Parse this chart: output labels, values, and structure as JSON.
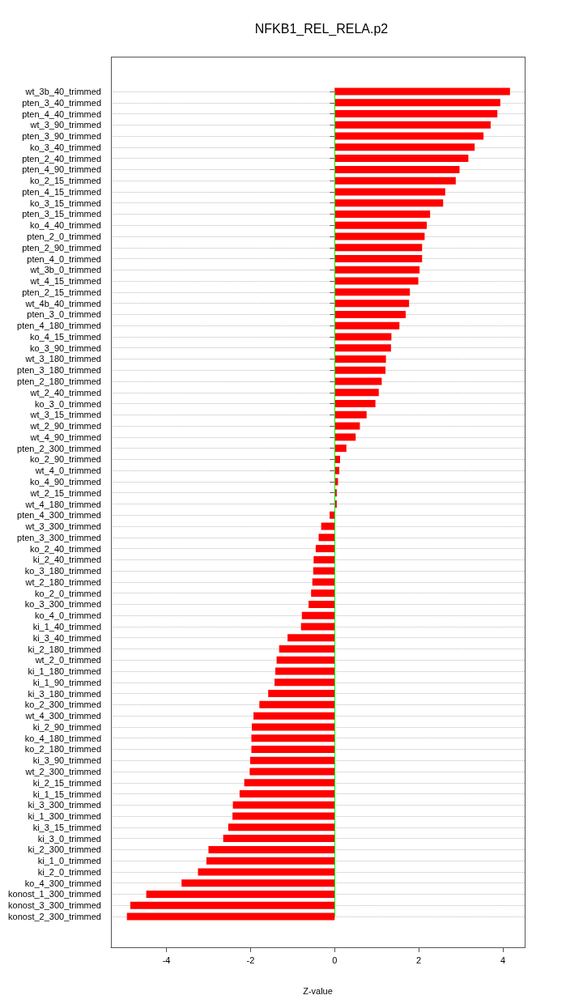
{
  "chart_data": {
    "type": "bar",
    "orientation": "horizontal",
    "title": "NFKB1_REL_RELA.p2",
    "xlabel": "Z-value",
    "categories": [
      "wt_3b_40_trimmed",
      "pten_3_40_trimmed",
      "pten_4_40_trimmed",
      "wt_3_90_trimmed",
      "pten_3_90_trimmed",
      "ko_3_40_trimmed",
      "pten_2_40_trimmed",
      "pten_4_90_trimmed",
      "ko_2_15_trimmed",
      "pten_4_15_trimmed",
      "ko_3_15_trimmed",
      "pten_3_15_trimmed",
      "ko_4_40_trimmed",
      "pten_2_0_trimmed",
      "pten_2_90_trimmed",
      "pten_4_0_trimmed",
      "wt_3b_0_trimmed",
      "wt_4_15_trimmed",
      "pten_2_15_trimmed",
      "wt_4b_40_trimmed",
      "pten_3_0_trimmed",
      "pten_4_180_trimmed",
      "ko_4_15_trimmed",
      "ko_3_90_trimmed",
      "wt_3_180_trimmed",
      "pten_3_180_trimmed",
      "pten_2_180_trimmed",
      "wt_2_40_trimmed",
      "ko_3_0_trimmed",
      "wt_3_15_trimmed",
      "wt_2_90_trimmed",
      "wt_4_90_trimmed",
      "pten_2_300_trimmed",
      "ko_2_90_trimmed",
      "wt_4_0_trimmed",
      "ko_4_90_trimmed",
      "wt_2_15_trimmed",
      "wt_4_180_trimmed",
      "pten_4_300_trimmed",
      "wt_3_300_trimmed",
      "pten_3_300_trimmed",
      "ko_2_40_trimmed",
      "ki_2_40_trimmed",
      "ko_3_180_trimmed",
      "wt_2_180_trimmed",
      "ko_2_0_trimmed",
      "ko_3_300_trimmed",
      "ko_4_0_trimmed",
      "ki_1_40_trimmed",
      "ki_3_40_trimmed",
      "ki_2_180_trimmed",
      "wt_2_0_trimmed",
      "ki_1_180_trimmed",
      "ki_1_90_trimmed",
      "ki_3_180_trimmed",
      "ko_2_300_trimmed",
      "wt_4_300_trimmed",
      "ki_2_90_trimmed",
      "ko_4_180_trimmed",
      "ko_2_180_trimmed",
      "ki_3_90_trimmed",
      "wt_2_300_trimmed",
      "ki_2_15_trimmed",
      "ki_1_15_trimmed",
      "ki_3_300_trimmed",
      "ki_1_300_trimmed",
      "ki_3_15_trimmed",
      "ki_3_0_trimmed",
      "ki_2_300_trimmed",
      "ki_1_0_trimmed",
      "ki_2_0_trimmed",
      "ko_4_300_trimmed",
      "konost_1_300_trimmed",
      "konost_3_300_trimmed",
      "konost_2_300_trimmed"
    ],
    "values": [
      4.17,
      3.94,
      3.87,
      3.71,
      3.54,
      3.33,
      3.18,
      2.97,
      2.88,
      2.63,
      2.58,
      2.27,
      2.19,
      2.14,
      2.08,
      2.08,
      2.02,
      1.99,
      1.79,
      1.77,
      1.69,
      1.54,
      1.35,
      1.34,
      1.22,
      1.21,
      1.12,
      1.05,
      0.97,
      0.76,
      0.6,
      0.5,
      0.28,
      0.13,
      0.11,
      0.08,
      0.05,
      0.05,
      -0.12,
      -0.32,
      -0.38,
      -0.45,
      -0.5,
      -0.51,
      -0.53,
      -0.56,
      -0.62,
      -0.78,
      -0.8,
      -1.12,
      -1.32,
      -1.38,
      -1.41,
      -1.43,
      -1.58,
      -1.79,
      -1.93,
      -1.97,
      -1.98,
      -1.98,
      -2.01,
      -2.02,
      -2.15,
      -2.26,
      -2.42,
      -2.43,
      -2.53,
      -2.65,
      -3.0,
      -3.05,
      -3.25,
      -3.64,
      -4.48,
      -4.86,
      -4.94
    ],
    "color": "#ff0000",
    "xlim": [
      -5.32,
      4.52
    ],
    "xticks": [
      -4,
      -2,
      0,
      2,
      4
    ],
    "grid": "y",
    "ref_lines": [
      {
        "axis": "x",
        "value": 0,
        "color": "#00ff00"
      }
    ]
  }
}
